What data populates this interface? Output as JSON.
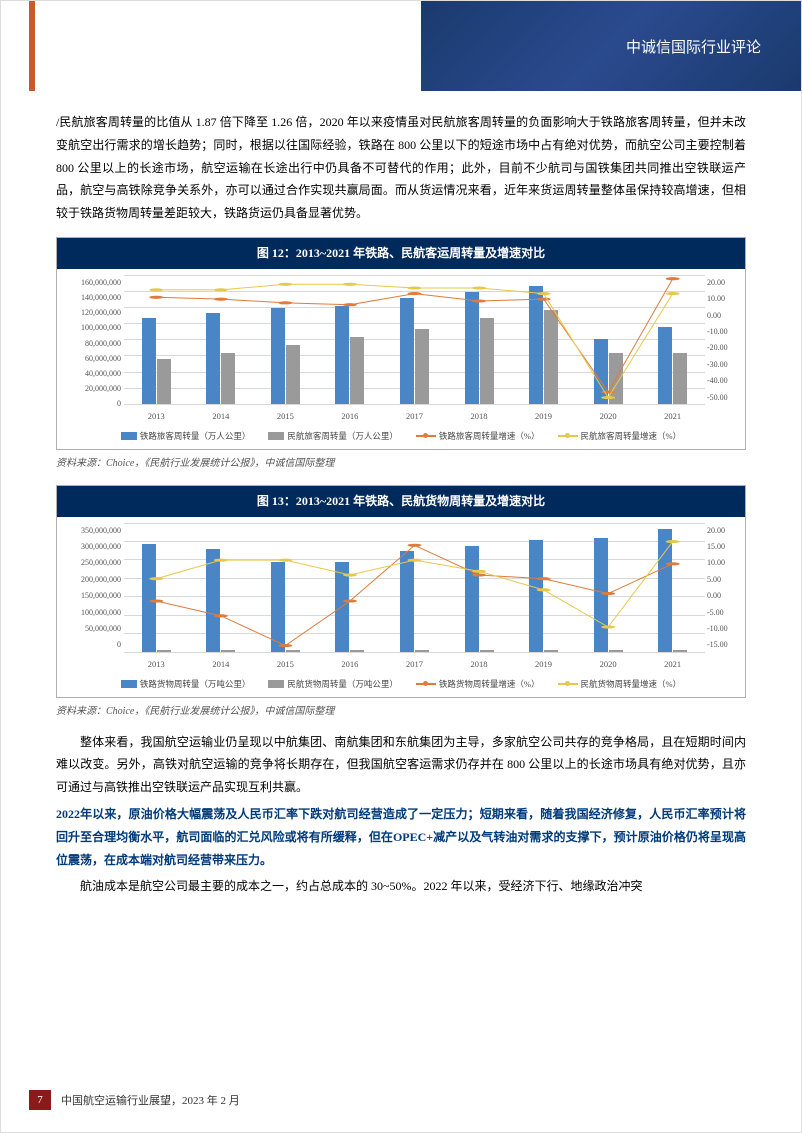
{
  "header": {
    "title": "中诚信国际行业评论"
  },
  "paragraphs": {
    "p1": "/民航旅客周转量的比值从 1.87 倍下降至 1.26 倍，2020 年以来疫情虽对民航旅客周转量的负面影响大于铁路旅客周转量，但并未改变航空出行需求的增长趋势；同时，根据以往国际经验，铁路在 800 公里以下的短途市场中占有绝对优势，而航空公司主要控制着 800 公里以上的长途市场，航空运输在长途出行中仍具备不可替代的作用；此外，目前不少航司与国铁集团共同推出空铁联运产品，航空与高铁除竞争关系外，亦可以通过合作实现共赢局面。而从货运情况来看，近年来货运周转量整体虽保持较高增速，但相较于铁路货物周转量差距较大，铁路货运仍具备显著优势。",
    "p2": "整体来看，我国航空运输业仍呈现以中航集团、南航集团和东航集团为主导，多家航空公司共存的竞争格局，且在短期时间内难以改变。另外，高铁对航空运输的竞争将长期存在，但我国航空客运需求仍存并在 800 公里以上的长途市场具有绝对优势，且亦可通过与高铁推出空铁联运产品实现互利共赢。",
    "p3": "2022年以来，原油价格大幅震荡及人民币汇率下跌对航司经营造成了一定压力；短期来看，随着我国经济修复，人民币汇率预计将回升至合理均衡水平，航司面临的汇兑风险或将有所缓释，但在OPEC+减产以及气转油对需求的支撑下，预计原油价格仍将呈现高位震荡，在成本端对航司经营带来压力。",
    "p4": "航油成本是航空公司最主要的成本之一，约占总成本的 30~50%。2022 年以来，受经济下行、地缘政治冲突"
  },
  "chart12": {
    "title": "图 12：2013~2021 年铁路、民航客运周转量及增速对比",
    "source": "资料来源：Choice，《民航行业发展统计公报》，中诚信国际整理",
    "x_labels": [
      "2013",
      "2014",
      "2015",
      "2016",
      "2017",
      "2018",
      "2019",
      "2020",
      "2021"
    ],
    "y_left": {
      "max": 160000000,
      "ticks": [
        "160,000,000",
        "140,000,000",
        "120,000,000",
        "100,000,000",
        "80,000,000",
        "60,000,000",
        "40,000,000",
        "20,000,000",
        "0"
      ]
    },
    "y_right": {
      "max": 20,
      "min": -50,
      "ticks": [
        "20.00",
        "10.00",
        "0.00",
        "-10.00",
        "-20.00",
        "-30.00",
        "-40.00",
        "-50.00"
      ]
    },
    "series_bar1": {
      "label": "铁路旅客周转量（万人公里）",
      "color": "#4a86c5",
      "values": [
        105000000,
        112000000,
        118000000,
        120000000,
        130000000,
        138000000,
        145000000,
        80000000,
        95000000
      ]
    },
    "series_bar2": {
      "label": "民航旅客周转量（万人公里）",
      "color": "#9a9a9a",
      "values": [
        55000000,
        62000000,
        72000000,
        82000000,
        92000000,
        105000000,
        115000000,
        62000000,
        62000000
      ]
    },
    "series_line1": {
      "label": "铁路旅客周转量增速（%）",
      "color": "#e07b3a",
      "values": [
        8,
        7,
        5,
        4,
        10,
        6,
        7,
        -43,
        18
      ]
    },
    "series_line2": {
      "label": "民航旅客周转量增速（%）",
      "color": "#e8c84a",
      "values": [
        12,
        12,
        15,
        15,
        13,
        13,
        10,
        -46,
        10
      ]
    }
  },
  "chart13": {
    "title": "图 13：2013~2021 年铁路、民航货物周转量及增速对比",
    "source": "资料来源：Choice，《民航行业发展统计公报》，中诚信国际整理",
    "x_labels": [
      "2013",
      "2014",
      "2015",
      "2016",
      "2017",
      "2018",
      "2019",
      "2020",
      "2021"
    ],
    "y_left": {
      "max": 350000000,
      "ticks": [
        "350,000,000",
        "300,000,000",
        "250,000,000",
        "200,000,000",
        "150,000,000",
        "100,000,000",
        "50,000,000",
        "0"
      ]
    },
    "y_right": {
      "max": 20,
      "min": -15,
      "ticks": [
        "20.00",
        "15.00",
        "10.00",
        "5.00",
        "0.00",
        "-5.00",
        "-10.00",
        "-15.00"
      ]
    },
    "series_bar1": {
      "label": "铁路货物周转量（万吨公里）",
      "color": "#4a86c5",
      "values": [
        290000000,
        275000000,
        240000000,
        240000000,
        270000000,
        285000000,
        300000000,
        305000000,
        330000000
      ]
    },
    "series_bar2": {
      "label": "民航货物周转量（万吨公里）",
      "color": "#9a9a9a",
      "values": [
        4000000,
        4000000,
        4000000,
        4000000,
        4000000,
        4000000,
        4000000,
        4000000,
        4000000
      ]
    },
    "series_line1": {
      "label": "铁路货物周转量增速（%）",
      "color": "#e07b3a",
      "values": [
        -1,
        -5,
        -13,
        -1,
        14,
        6,
        5,
        1,
        9
      ]
    },
    "series_line2": {
      "label": "民航货物周转量增速（%）",
      "color": "#e8c84a",
      "values": [
        5,
        10,
        10,
        6,
        10,
        7,
        2,
        -8,
        15
      ]
    }
  },
  "footer": {
    "page_num": "7",
    "text": "中国航空运输行业展望，2023 年 2 月"
  }
}
